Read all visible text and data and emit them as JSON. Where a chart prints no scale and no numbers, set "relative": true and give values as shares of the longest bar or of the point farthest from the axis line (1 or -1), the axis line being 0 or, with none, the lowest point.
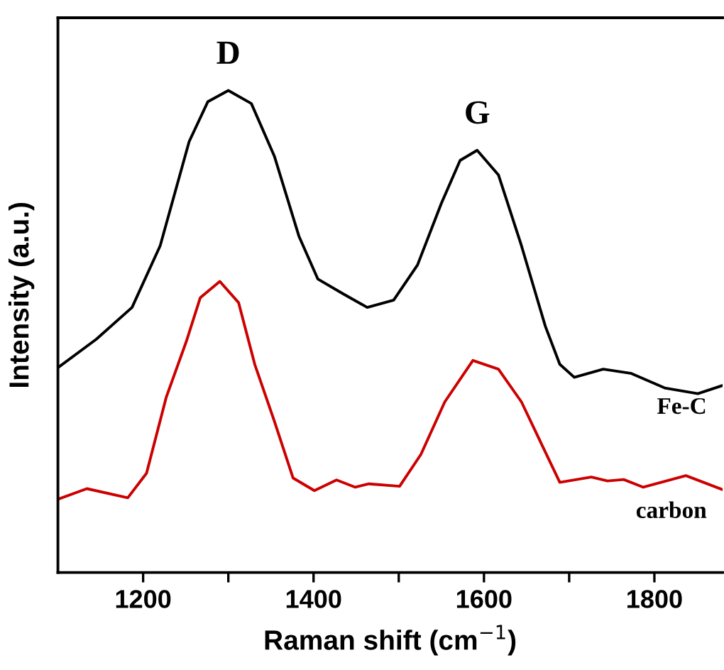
{
  "chart_data": {
    "type": "line",
    "relative": true,
    "xlabel": "Raman shift (cm$^{−1}$)",
    "ylabel": "Intensity (a.u.)",
    "xlim": [
      1100,
      1880
    ],
    "xticks": [
      1200,
      {
        "value": 1300,
        "label": null
      },
      1400,
      {
        "value": 1500,
        "label": null
      },
      1600,
      {
        "value": 1700,
        "label": null
      },
      1800
    ],
    "tick_labels": "x",
    "grid": false,
    "legend": false,
    "marker": "none",
    "line_style": "solid",
    "annotations": [
      "D",
      "G"
    ],
    "series": [
      {
        "name": "Fe-C",
        "color": "#000000",
        "x": [
          1100,
          1145,
          1187,
          1220,
          1254,
          1276,
          1300,
          1327,
          1354,
          1383,
          1405,
          1434,
          1463,
          1494,
          1522,
          1550,
          1572,
          1592,
          1617,
          1644,
          1672,
          1689,
          1706,
          1740,
          1773,
          1812,
          1851,
          1880
        ],
        "values": [
          0.425,
          0.484,
          0.55,
          0.678,
          0.894,
          0.977,
          1.0,
          0.973,
          0.864,
          0.697,
          0.609,
          0.579,
          0.55,
          0.565,
          0.638,
          0.766,
          0.855,
          0.876,
          0.825,
          0.678,
          0.511,
          0.432,
          0.405,
          0.422,
          0.413,
          0.383,
          0.371,
          0.388
        ]
      },
      {
        "name": "carbon",
        "color": "#cc0000",
        "x": [
          1100,
          1134,
          1182,
          1204,
          1227,
          1251,
          1267,
          1290,
          1312,
          1331,
          1354,
          1376,
          1401,
          1427,
          1449,
          1465,
          1501,
          1526,
          1554,
          1587,
          1617,
          1644,
          1689,
          1726,
          1745,
          1764,
          1787,
          1837,
          1880
        ],
        "values": [
          0.152,
          0.174,
          0.155,
          0.206,
          0.363,
          0.481,
          0.57,
          0.604,
          0.56,
          0.432,
          0.314,
          0.196,
          0.17,
          0.192,
          0.177,
          0.184,
          0.179,
          0.245,
          0.354,
          0.44,
          0.422,
          0.354,
          0.187,
          0.198,
          0.19,
          0.193,
          0.177,
          0.201,
          0.172
        ]
      }
    ]
  }
}
